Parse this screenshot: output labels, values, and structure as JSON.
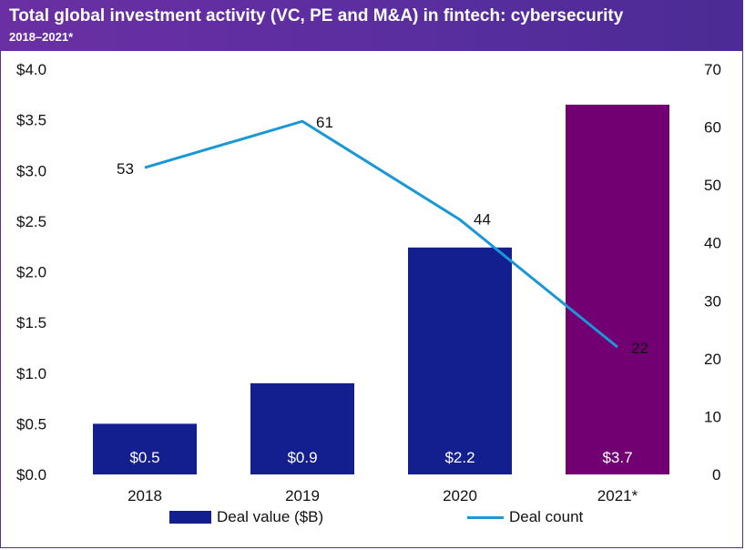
{
  "header": {
    "title": "Total global investment activity (VC, PE and M&A) in fintech: cybersecurity",
    "subtitle": "2018–2021*"
  },
  "colors": {
    "header_bg": "#5a2e9f",
    "bar_primary": "#131f8f",
    "bar_highlight": "#720073",
    "line": "#1a98d5"
  },
  "chart_data": {
    "type": "bar",
    "title": "Total global investment activity (VC, PE and M&A) in fintech: cybersecurity",
    "subtitle": "2018–2021*",
    "categories": [
      "2018",
      "2019",
      "2020",
      "2021*"
    ],
    "series": [
      {
        "name": "Deal value ($B)",
        "type": "bar",
        "axis": "left",
        "values": [
          0.5,
          0.9,
          2.24,
          3.65
        ],
        "labels": [
          "$0.5",
          "$0.9",
          "$2.2",
          "$3.7"
        ],
        "highlight_index": 3
      },
      {
        "name": "Deal count",
        "type": "line",
        "axis": "right",
        "values": [
          53,
          61,
          44,
          22
        ],
        "labels": [
          "53",
          "61",
          "44",
          "22"
        ]
      }
    ],
    "left_axis": {
      "ylim": [
        0,
        4.0
      ],
      "ticks": [
        0,
        0.5,
        1.0,
        1.5,
        2.0,
        2.5,
        3.0,
        3.5,
        4.0
      ],
      "tick_labels": [
        "$0.0",
        "$0.5",
        "$1.0",
        "$1.5",
        "$2.0",
        "$2.5",
        "$3.0",
        "$3.5",
        "$4.0"
      ]
    },
    "right_axis": {
      "ylim": [
        0,
        70
      ],
      "ticks": [
        0,
        10,
        20,
        30,
        40,
        50,
        60,
        70
      ],
      "tick_labels": [
        "0",
        "10",
        "20",
        "30",
        "40",
        "50",
        "60",
        "70"
      ]
    },
    "legend": {
      "position": "bottom",
      "items": [
        "Deal value ($B)",
        "Deal count"
      ]
    },
    "grid": false
  }
}
